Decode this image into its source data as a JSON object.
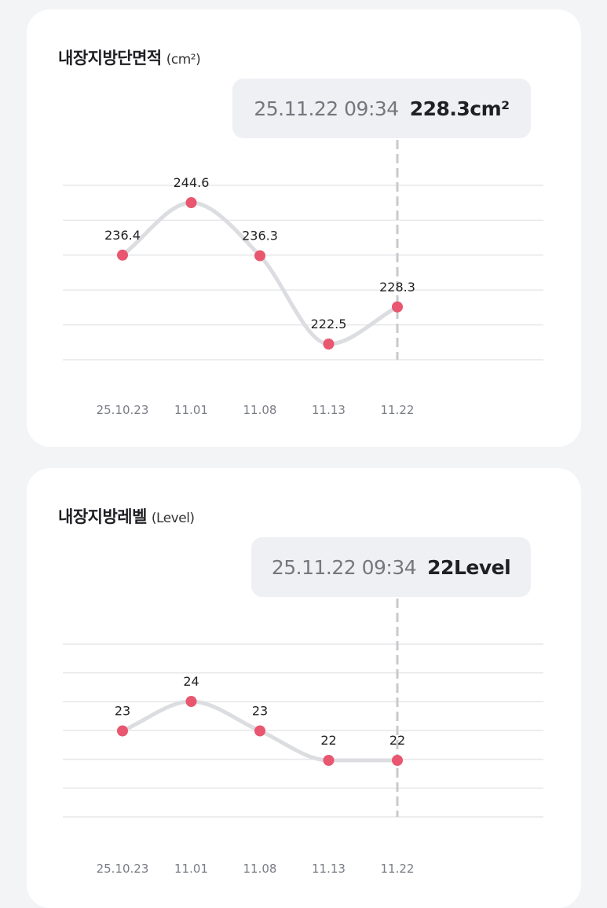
{
  "cards": [
    {
      "title": "내장지방단면적",
      "unit": "(cm²)",
      "tooltip": {
        "date": "25.11.22 09:34",
        "value": "228.3cm²"
      },
      "chart_data": {
        "type": "line",
        "categories": [
          "25.10.23",
          "11.01",
          "11.08",
          "11.13",
          "11.22"
        ],
        "series": [
          {
            "values": [
              236.4,
              244.6,
              236.3,
              222.5,
              228.3
            ]
          }
        ],
        "value_labels": [
          "236.4",
          "244.6",
          "236.3",
          "222.5",
          "228.3"
        ],
        "ylim": [
          220,
          250
        ],
        "grid": true,
        "line_color": "#dcdde1",
        "point_color": "#e8566f",
        "highlight_index": 4
      }
    },
    {
      "title": "내장지방레벨",
      "unit": "(Level)",
      "tooltip": {
        "date": "25.11.22 09:34",
        "value": "22Level"
      },
      "chart_data": {
        "type": "line",
        "categories": [
          "25.10.23",
          "11.01",
          "11.08",
          "11.13",
          "11.22"
        ],
        "series": [
          {
            "values": [
              23,
              24,
              23,
              22,
              22
            ]
          }
        ],
        "value_labels": [
          "23",
          "24",
          "23",
          "22",
          "22"
        ],
        "ylim": [
          20,
          25
        ],
        "grid": true,
        "line_color": "#dcdde1",
        "point_color": "#e8566f",
        "highlight_index": 4
      }
    }
  ]
}
